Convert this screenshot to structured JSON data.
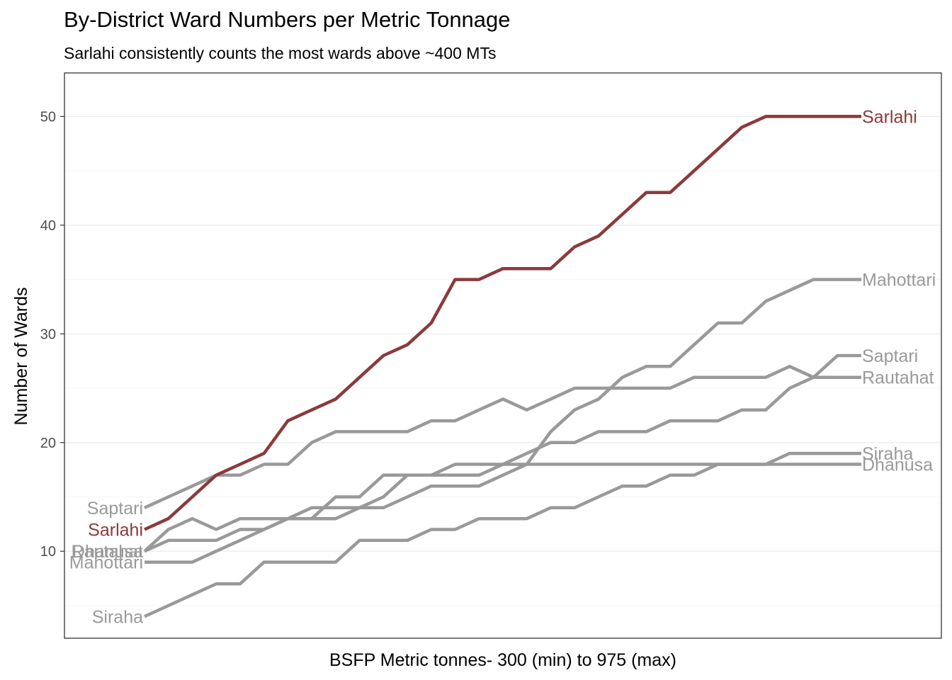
{
  "chart_data": {
    "type": "line",
    "title": "By-District Ward Numbers per Metric Tonnage",
    "subtitle": "Sarlahi consistently counts the most wards above ~400 MTs",
    "xlabel": "BSFP Metric tonnes- 300 (min) to 975 (max)",
    "ylabel": "Number of Wards",
    "ylim": [
      2,
      54
    ],
    "yticks": [
      10,
      20,
      30,
      40,
      50
    ],
    "x_ticks_shown": false,
    "grid": true,
    "legend": "direct labels at both line ends",
    "highlight_color": "#8b3a3a",
    "muted_color": "#999999",
    "x": [
      1,
      2,
      3,
      4,
      5,
      6,
      7,
      8,
      9,
      10,
      11,
      12,
      13,
      14,
      15,
      16,
      17,
      18,
      19,
      20,
      21,
      22,
      23,
      24,
      25,
      26,
      27,
      28,
      29,
      30,
      31
    ],
    "series": [
      {
        "name": "Saptari",
        "highlight": false,
        "values": [
          14,
          15,
          16,
          17,
          17,
          18,
          18,
          20,
          21,
          21,
          21,
          21,
          22,
          22,
          23,
          24,
          23,
          24,
          25,
          25,
          25,
          25,
          25,
          26,
          26,
          26,
          26,
          27,
          26,
          28,
          28
        ]
      },
      {
        "name": "Mahottari",
        "highlight": false,
        "values": [
          9,
          9,
          9,
          10,
          11,
          12,
          13,
          14,
          14,
          14,
          14,
          15,
          16,
          16,
          16,
          17,
          18,
          21,
          23,
          24,
          26,
          27,
          27,
          29,
          31,
          31,
          33,
          34,
          35,
          35,
          35
        ]
      },
      {
        "name": "Dhanusa",
        "highlight": false,
        "values": [
          10,
          12,
          13,
          12,
          13,
          13,
          13,
          13,
          13,
          14,
          15,
          17,
          17,
          17,
          17,
          18,
          18,
          18,
          18,
          18,
          18,
          18,
          18,
          18,
          18,
          18,
          18,
          18,
          18,
          18,
          18
        ]
      },
      {
        "name": "Rautahat",
        "highlight": false,
        "values": [
          10,
          11,
          11,
          11,
          12,
          12,
          13,
          13,
          15,
          15,
          17,
          17,
          17,
          18,
          18,
          18,
          19,
          20,
          20,
          21,
          21,
          21,
          22,
          22,
          22,
          23,
          23,
          25,
          26,
          26,
          26
        ]
      },
      {
        "name": "Siraha",
        "highlight": false,
        "values": [
          4,
          5,
          6,
          7,
          7,
          9,
          9,
          9,
          9,
          11,
          11,
          11,
          12,
          12,
          13,
          13,
          13,
          14,
          14,
          15,
          16,
          16,
          17,
          17,
          18,
          18,
          18,
          19,
          19,
          19,
          19
        ]
      },
      {
        "name": "Sarlahi",
        "highlight": true,
        "values": [
          12,
          13,
          15,
          17,
          18,
          19,
          22,
          23,
          24,
          26,
          28,
          29,
          31,
          35,
          35,
          36,
          36,
          36,
          38,
          39,
          41,
          43,
          43,
          45,
          47,
          49,
          50,
          50,
          50,
          50,
          50
        ]
      }
    ],
    "start_labels": [
      "Saptari",
      "Sarlahi",
      "Dhanusa",
      "Rautahat",
      "Mahottari",
      "Siraha"
    ],
    "end_labels": [
      "Sarlahi",
      "Mahottari",
      "Saptari",
      "Dhanusa",
      "Rautahat",
      "Siraha"
    ]
  }
}
